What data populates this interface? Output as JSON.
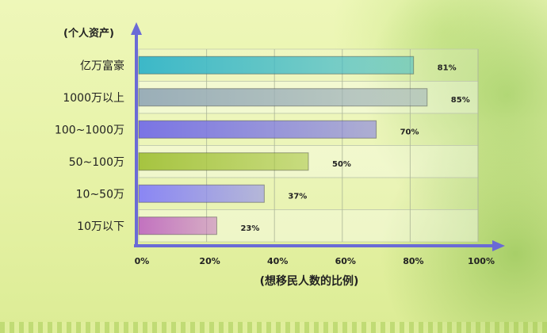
{
  "chart_data": {
    "type": "bar",
    "orientation": "horizontal",
    "categories": [
      "亿万富豪",
      "1000万以上",
      "100~1000万",
      "50~100万",
      "10~50万",
      "10万以下"
    ],
    "values": [
      81,
      85,
      70,
      50,
      37,
      23
    ],
    "value_labels": [
      "81%",
      "85%",
      "70%",
      "50%",
      "37%",
      "23%"
    ],
    "xlim": [
      0,
      100
    ],
    "x_ticks": [
      "0%",
      "20%",
      "40%",
      "60%",
      "80%",
      "100%"
    ],
    "x_tick_values": [
      0,
      20,
      40,
      60,
      80,
      100
    ],
    "xlabel": "(想移民人数的比例)",
    "ylabel": "(个人资产)",
    "grid": true,
    "legend": "none",
    "bar_colors": [
      "#3cb8c8",
      "#9aaeb8",
      "#7a74e4",
      "#a6c440",
      "#8a86f4",
      "#c272c0"
    ],
    "axis_color": "#6a6ad6"
  }
}
